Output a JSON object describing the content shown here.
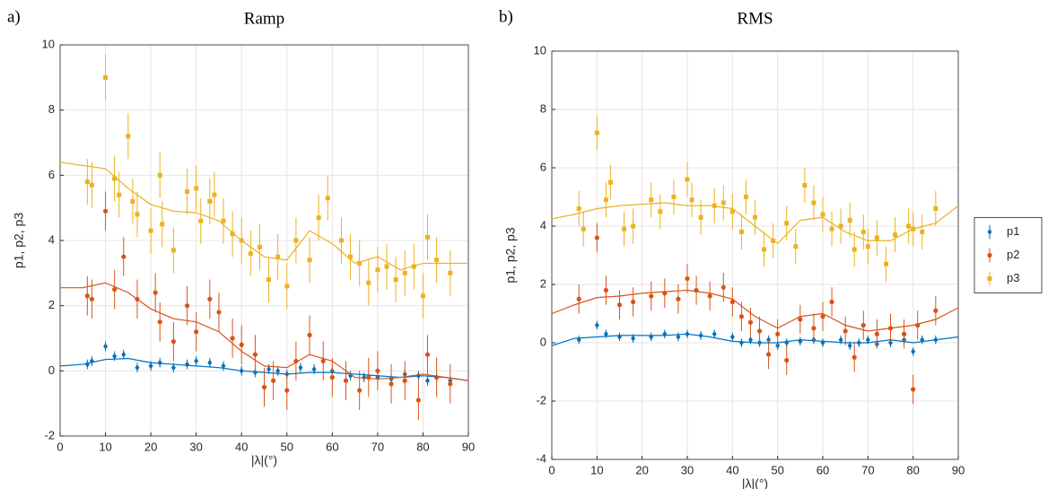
{
  "chart_data": [
    {
      "type": "scatter",
      "panel_label": "a)",
      "title": "Ramp",
      "x_label": "|λ|(°)",
      "y_label": "p1, p2, p3",
      "xlim": [
        0,
        90
      ],
      "ylim": [
        -2,
        10
      ],
      "xticks": [
        0,
        10,
        20,
        30,
        40,
        50,
        60,
        70,
        80,
        90
      ],
      "yticks": [
        -2,
        0,
        2,
        4,
        6,
        8,
        10
      ],
      "grid": true,
      "series": [
        {
          "color": "#0072BD",
          "marker": "diamond",
          "error": 0.15,
          "x": [
            6,
            7,
            10,
            12,
            14,
            17,
            20,
            22,
            25,
            28,
            30,
            33,
            36,
            40,
            43,
            46,
            48,
            50,
            53,
            56,
            60,
            64,
            67,
            70,
            73,
            76,
            79,
            81,
            83,
            86
          ],
          "values": [
            0.2,
            0.3,
            0.75,
            0.45,
            0.5,
            0.1,
            0.15,
            0.25,
            0.1,
            0.2,
            0.3,
            0.25,
            0.15,
            0.0,
            -0.05,
            0.05,
            0.0,
            -0.1,
            0.1,
            0.05,
            0.0,
            -0.15,
            -0.2,
            -0.2,
            -0.25,
            -0.1,
            -0.15,
            -0.3,
            -0.2,
            -0.3
          ],
          "fit": {
            "x": [
              0,
              5,
              10,
              15,
              20,
              25,
              30,
              35,
              40,
              45,
              50,
              55,
              60,
              65,
              70,
              75,
              80,
              85,
              90
            ],
            "values": [
              0.15,
              0.2,
              0.35,
              0.38,
              0.25,
              0.2,
              0.15,
              0.1,
              0.0,
              -0.05,
              -0.1,
              -0.05,
              -0.05,
              -0.1,
              -0.15,
              -0.2,
              -0.15,
              -0.2,
              -0.3
            ]
          }
        },
        {
          "color": "#D95319",
          "marker": "circle",
          "error": 0.6,
          "x": [
            6,
            7,
            10,
            12,
            14,
            17,
            21,
            22,
            25,
            28,
            30,
            33,
            35,
            38,
            40,
            43,
            45,
            47,
            50,
            52,
            55,
            58,
            60,
            63,
            66,
            68,
            70,
            73,
            76,
            79,
            81,
            83,
            86
          ],
          "values": [
            2.3,
            2.2,
            4.9,
            2.5,
            3.5,
            2.2,
            2.4,
            1.5,
            0.9,
            2.0,
            1.2,
            2.2,
            1.8,
            1.0,
            0.8,
            0.5,
            -0.5,
            -0.3,
            -0.6,
            0.3,
            1.1,
            0.3,
            -0.2,
            -0.3,
            -0.6,
            -0.2,
            0.0,
            -0.4,
            -0.3,
            -0.9,
            0.5,
            -0.2,
            -0.4
          ],
          "fit": {
            "x": [
              0,
              5,
              10,
              15,
              20,
              25,
              30,
              35,
              40,
              45,
              50,
              55,
              60,
              65,
              70,
              75,
              80,
              85,
              90
            ],
            "values": [
              2.55,
              2.55,
              2.7,
              2.4,
              1.9,
              1.6,
              1.5,
              1.2,
              0.6,
              0.15,
              0.1,
              0.5,
              0.3,
              -0.2,
              -0.25,
              -0.2,
              -0.1,
              -0.2,
              -0.3
            ]
          }
        },
        {
          "color": "#EDB120",
          "marker": "square",
          "error": 0.7,
          "x": [
            6,
            7,
            10,
            12,
            13,
            15,
            16,
            17,
            20,
            22,
            22.5,
            25,
            28,
            30,
            31,
            33,
            34,
            36,
            38,
            40,
            42,
            44,
            46,
            48,
            50,
            52,
            55,
            57,
            59,
            62,
            64,
            66,
            68,
            70,
            72,
            74,
            76,
            78,
            80,
            81,
            83,
            86
          ],
          "values": [
            5.8,
            5.7,
            9.0,
            5.9,
            5.4,
            7.2,
            5.2,
            4.8,
            4.3,
            6.0,
            4.5,
            3.7,
            5.5,
            5.6,
            4.6,
            5.2,
            5.4,
            4.6,
            4.2,
            4.0,
            3.6,
            3.8,
            2.8,
            3.5,
            2.6,
            4.0,
            3.4,
            4.7,
            5.3,
            4.0,
            3.5,
            3.3,
            2.7,
            3.1,
            3.2,
            2.8,
            3.0,
            3.2,
            2.3,
            4.1,
            3.4,
            3.0
          ],
          "fit": {
            "x": [
              0,
              5,
              10,
              15,
              20,
              25,
              30,
              35,
              40,
              45,
              50,
              55,
              60,
              65,
              70,
              75,
              80,
              85,
              90
            ],
            "values": [
              6.4,
              6.3,
              6.2,
              5.6,
              5.1,
              4.9,
              4.85,
              4.6,
              4.0,
              3.5,
              3.4,
              4.3,
              3.9,
              3.3,
              3.5,
              3.1,
              3.3,
              3.3,
              3.3
            ]
          }
        }
      ]
    },
    {
      "type": "scatter",
      "panel_label": "b)",
      "title": "RMS",
      "x_label": "|λ|(°)",
      "y_label": "p1, p2, p3",
      "xlim": [
        0,
        90
      ],
      "ylim": [
        -4,
        10
      ],
      "xticks": [
        0,
        10,
        20,
        30,
        40,
        50,
        60,
        70,
        80,
        90
      ],
      "yticks": [
        -4,
        -2,
        0,
        2,
        4,
        6,
        8,
        10
      ],
      "grid": true,
      "legend": "right",
      "series": [
        {
          "name": "p1",
          "color": "#0072BD",
          "marker": "diamond",
          "error": 0.15,
          "x": [
            6,
            10,
            12,
            15,
            18,
            22,
            25,
            28,
            30,
            33,
            36,
            40,
            42,
            44,
            46,
            48,
            50,
            52,
            55,
            58,
            60,
            64,
            66,
            68,
            70,
            72,
            75,
            78,
            80,
            82,
            85
          ],
          "values": [
            0.1,
            0.6,
            0.3,
            0.2,
            0.15,
            0.2,
            0.3,
            0.2,
            0.3,
            0.25,
            0.3,
            0.2,
            0.0,
            0.1,
            0.0,
            0.1,
            -0.1,
            0.0,
            0.05,
            0.1,
            0.0,
            0.1,
            -0.1,
            0.0,
            0.1,
            -0.05,
            0.0,
            0.1,
            -0.3,
            0.1,
            0.1
          ],
          "fit": {
            "x": [
              0,
              5,
              10,
              15,
              20,
              25,
              30,
              35,
              40,
              45,
              50,
              55,
              60,
              65,
              70,
              75,
              80,
              85,
              90
            ],
            "values": [
              -0.1,
              0.15,
              0.2,
              0.25,
              0.25,
              0.25,
              0.3,
              0.2,
              0.05,
              0.0,
              0.0,
              0.1,
              0.05,
              0.0,
              0.0,
              0.1,
              0.0,
              0.1,
              0.2
            ]
          }
        },
        {
          "name": "p2",
          "color": "#D95319",
          "marker": "circle",
          "error": 0.5,
          "x": [
            6,
            10,
            12,
            15,
            18,
            22,
            25,
            28,
            30,
            32,
            35,
            38,
            40,
            42,
            44,
            46,
            48,
            50,
            52,
            55,
            58,
            60,
            62,
            65,
            67,
            69,
            72,
            75,
            78,
            80,
            81,
            85
          ],
          "values": [
            1.5,
            3.6,
            1.8,
            1.3,
            1.4,
            1.6,
            1.7,
            1.5,
            2.2,
            1.8,
            1.6,
            1.9,
            1.4,
            0.9,
            0.7,
            0.4,
            -0.4,
            0.3,
            -0.6,
            0.8,
            0.5,
            0.9,
            1.4,
            0.4,
            -0.5,
            0.6,
            0.3,
            0.5,
            0.3,
            -1.6,
            0.6,
            1.1
          ],
          "fit": {
            "x": [
              0,
              5,
              10,
              15,
              20,
              25,
              30,
              35,
              40,
              45,
              50,
              55,
              60,
              65,
              70,
              75,
              80,
              85,
              90
            ],
            "values": [
              1.0,
              1.3,
              1.55,
              1.6,
              1.7,
              1.75,
              1.8,
              1.7,
              1.5,
              0.9,
              0.5,
              0.9,
              1.0,
              0.6,
              0.4,
              0.5,
              0.6,
              0.8,
              1.2
            ]
          }
        },
        {
          "name": "p3",
          "color": "#EDB120",
          "marker": "square",
          "error": 0.6,
          "x": [
            6,
            7,
            10,
            12,
            13,
            16,
            18,
            22,
            24,
            27,
            30,
            31,
            33,
            36,
            38,
            40,
            42,
            43,
            45,
            47,
            49,
            52,
            54,
            56,
            58,
            60,
            62,
            64,
            66,
            67,
            69,
            70,
            72,
            74,
            76,
            79,
            80,
            82,
            85
          ],
          "values": [
            4.6,
            3.9,
            7.2,
            4.9,
            5.5,
            3.9,
            4.0,
            4.9,
            4.5,
            5.0,
            5.6,
            4.9,
            4.3,
            4.7,
            4.8,
            4.5,
            3.8,
            5.0,
            4.3,
            3.2,
            3.5,
            4.1,
            3.3,
            5.4,
            4.8,
            4.4,
            3.9,
            4.0,
            4.2,
            3.2,
            3.8,
            3.3,
            3.6,
            2.7,
            3.7,
            4.0,
            3.9,
            3.8,
            4.6
          ],
          "fit": {
            "x": [
              0,
              5,
              10,
              15,
              20,
              25,
              30,
              35,
              40,
              45,
              50,
              55,
              60,
              65,
              70,
              75,
              80,
              85,
              90
            ],
            "values": [
              4.25,
              4.4,
              4.6,
              4.7,
              4.75,
              4.8,
              4.7,
              4.7,
              4.6,
              4.0,
              3.4,
              4.2,
              4.3,
              3.8,
              3.5,
              3.5,
              3.9,
              4.1,
              4.7
            ]
          }
        }
      ]
    }
  ]
}
